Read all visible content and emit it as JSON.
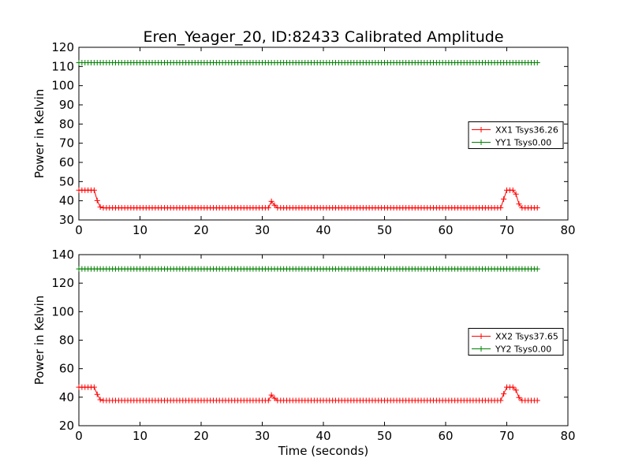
{
  "chart_data": [
    {
      "type": "line",
      "title": "Eren_Yeager_20, ID:82433 Calibrated Amplitude",
      "xlabel": "",
      "ylabel": "Power in Kelvin",
      "xlim": [
        0,
        80
      ],
      "ylim": [
        30,
        120
      ],
      "xticks": [
        "0",
        "10",
        "20",
        "30",
        "40",
        "50",
        "60",
        "70",
        "80"
      ],
      "yticks": [
        "30",
        "40",
        "50",
        "60",
        "70",
        "80",
        "90",
        "100",
        "110",
        "120"
      ],
      "legend_position": "center-right",
      "marker": "+",
      "series": [
        {
          "name": "XX1 Tsys36.26",
          "color": "#ff0000",
          "baseline": 36.3,
          "x_range": [
            0,
            75
          ],
          "keypoints": [
            [
              0,
              45.5
            ],
            [
              2.5,
              45.5
            ],
            [
              3.2,
              38
            ],
            [
              3.6,
              36.3
            ],
            [
              31.2,
              36.3
            ],
            [
              31.7,
              42
            ],
            [
              32.1,
              36.3
            ],
            [
              69.2,
              36.3
            ],
            [
              69.8,
              45.5
            ],
            [
              71.3,
              45.5
            ],
            [
              72.2,
              36.3
            ],
            [
              75,
              36.3
            ]
          ]
        },
        {
          "name": "YY1 Tsys0.00",
          "color": "#008000",
          "baseline": 112,
          "x_range": [
            0,
            75
          ],
          "keypoints": [
            [
              0,
              112
            ],
            [
              75,
              112
            ]
          ]
        }
      ]
    },
    {
      "type": "line",
      "title": "",
      "xlabel": "Time (seconds)",
      "ylabel": "Power in Kelvin",
      "xlim": [
        0,
        80
      ],
      "ylim": [
        20,
        140
      ],
      "xticks": [
        "0",
        "10",
        "20",
        "30",
        "40",
        "50",
        "60",
        "70",
        "80"
      ],
      "yticks": [
        "20",
        "40",
        "60",
        "80",
        "100",
        "120",
        "140"
      ],
      "legend_position": "center-right",
      "marker": "+",
      "series": [
        {
          "name": "XX2 Tsys37.65",
          "color": "#ff0000",
          "baseline": 37.7,
          "x_range": [
            0,
            75
          ],
          "keypoints": [
            [
              0,
              47
            ],
            [
              2.5,
              47
            ],
            [
              3.2,
              40
            ],
            [
              3.6,
              37.7
            ],
            [
              31.2,
              37.7
            ],
            [
              31.7,
              44
            ],
            [
              32.1,
              37.7
            ],
            [
              69.2,
              37.7
            ],
            [
              69.8,
              47
            ],
            [
              71.3,
              47
            ],
            [
              72.2,
              37.7
            ],
            [
              75,
              37.7
            ]
          ]
        },
        {
          "name": "YY2 Tsys0.00",
          "color": "#008000",
          "baseline": 130,
          "x_range": [
            0,
            75
          ],
          "keypoints": [
            [
              0,
              130
            ],
            [
              75,
              130
            ]
          ]
        }
      ]
    }
  ]
}
